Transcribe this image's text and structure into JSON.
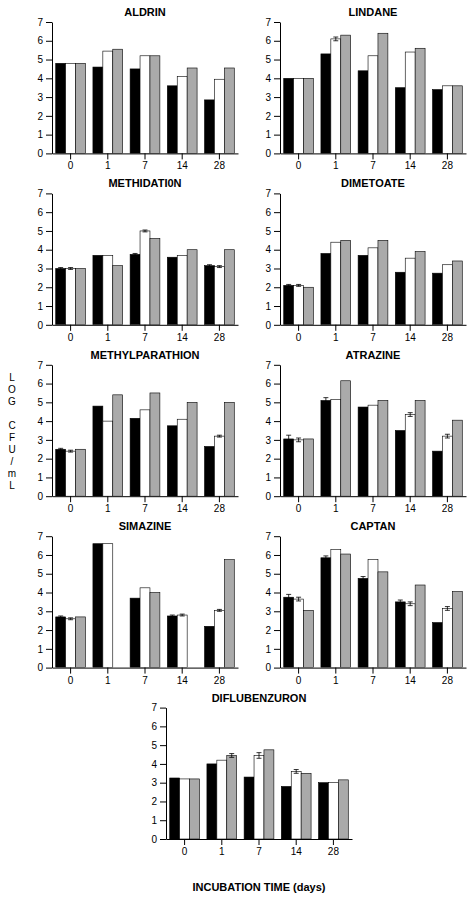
{
  "chart_data": [
    {
      "type": "bar",
      "title": "ALDRIN",
      "categories": [
        "0",
        "1",
        "7",
        "14",
        "28"
      ],
      "series": [
        {
          "color": "black",
          "values": [
            4.8,
            4.6,
            4.5,
            3.6,
            2.85
          ],
          "errors": [
            0,
            0,
            0,
            0,
            0
          ]
        },
        {
          "color": "white",
          "values": [
            4.8,
            5.45,
            5.2,
            4.1,
            3.95
          ],
          "errors": [
            0,
            0,
            0,
            0,
            0
          ]
        },
        {
          "color": "#aaaaaa",
          "values": [
            4.8,
            5.55,
            5.2,
            4.55,
            4.55
          ],
          "errors": [
            0,
            0,
            0,
            0,
            0
          ]
        }
      ],
      "ylim": [
        0,
        7
      ],
      "yticks": [
        0,
        1,
        2,
        3,
        4,
        5,
        6,
        7
      ],
      "grid": false
    },
    {
      "type": "bar",
      "title": "LINDANE",
      "categories": [
        "0",
        "1",
        "7",
        "14",
        "28"
      ],
      "series": [
        {
          "color": "black",
          "values": [
            4.0,
            5.3,
            4.4,
            3.5,
            3.4
          ],
          "errors": [
            0,
            0,
            0,
            0,
            0
          ]
        },
        {
          "color": "white",
          "values": [
            4.0,
            6.1,
            5.2,
            5.4,
            3.6
          ],
          "errors": [
            0,
            0.1,
            0,
            0,
            0
          ]
        },
        {
          "color": "#aaaaaa",
          "values": [
            4.0,
            6.3,
            6.4,
            5.6,
            3.6
          ],
          "errors": [
            0,
            0,
            0,
            0,
            0
          ]
        }
      ],
      "ylim": [
        0,
        7
      ],
      "yticks": [
        0,
        1,
        2,
        3,
        4,
        5,
        6,
        7
      ],
      "grid": false
    },
    {
      "type": "bar",
      "title": "METHIDATI0N",
      "categories": [
        "0",
        "1",
        "7",
        "14",
        "28"
      ],
      "series": [
        {
          "color": "black",
          "values": [
            3.0,
            3.7,
            3.75,
            3.6,
            3.15
          ],
          "errors": [
            0.05,
            0,
            0.05,
            0,
            0.05
          ]
        },
        {
          "color": "white",
          "values": [
            3.0,
            3.7,
            5.0,
            3.7,
            3.1
          ],
          "errors": [
            0.05,
            0,
            0.05,
            0,
            0.05
          ]
        },
        {
          "color": "#aaaaaa",
          "values": [
            3.0,
            3.15,
            4.6,
            4.0,
            4.0
          ],
          "errors": [
            0,
            0,
            0,
            0,
            0
          ]
        }
      ],
      "ylim": [
        0,
        7
      ],
      "yticks": [
        0,
        1,
        2,
        3,
        4,
        5,
        6,
        7
      ],
      "grid": false
    },
    {
      "type": "bar",
      "title": "DIMETOATE",
      "categories": [
        "0",
        "1",
        "7",
        "14",
        "28"
      ],
      "series": [
        {
          "color": "black",
          "values": [
            2.1,
            3.8,
            3.7,
            2.8,
            2.75
          ],
          "errors": [
            0.05,
            0,
            0,
            0,
            0
          ]
        },
        {
          "color": "white",
          "values": [
            2.1,
            4.4,
            4.1,
            3.55,
            3.2
          ],
          "errors": [
            0.05,
            0,
            0,
            0,
            0
          ]
        },
        {
          "color": "#aaaaaa",
          "values": [
            2.0,
            4.5,
            4.5,
            3.9,
            3.4
          ],
          "errors": [
            0,
            0,
            0,
            0,
            0
          ]
        }
      ],
      "ylim": [
        0,
        7
      ],
      "yticks": [
        0,
        1,
        2,
        3,
        4,
        5,
        6,
        7
      ],
      "grid": false
    },
    {
      "type": "bar",
      "title": "METHYLPARATHION",
      "categories": [
        "0",
        "1",
        "7",
        "14",
        "28"
      ],
      "series": [
        {
          "color": "black",
          "values": [
            2.5,
            4.8,
            4.15,
            3.75,
            2.65
          ],
          "errors": [
            0.05,
            0,
            0,
            0,
            0
          ]
        },
        {
          "color": "white",
          "values": [
            2.4,
            4.0,
            4.6,
            4.1,
            3.2
          ],
          "errors": [
            0.05,
            0,
            0,
            0,
            0.05
          ]
        },
        {
          "color": "#aaaaaa",
          "values": [
            2.5,
            5.4,
            5.5,
            5.0,
            5.0
          ],
          "errors": [
            0,
            0,
            0,
            0,
            0
          ]
        }
      ],
      "ylim": [
        0,
        7
      ],
      "yticks": [
        0,
        1,
        2,
        3,
        4,
        5,
        6,
        7
      ],
      "grid": false,
      "ylabel": "LOG CFU/mL"
    },
    {
      "type": "bar",
      "title": "ATRAZINE",
      "categories": [
        "0",
        "1",
        "7",
        "14",
        "28"
      ],
      "series": [
        {
          "color": "black",
          "values": [
            3.05,
            5.1,
            4.75,
            3.5,
            2.4
          ],
          "errors": [
            0.2,
            0.15,
            0,
            0,
            0
          ]
        },
        {
          "color": "white",
          "values": [
            3.0,
            5.15,
            4.85,
            4.35,
            3.2
          ],
          "errors": [
            0.1,
            0,
            0,
            0.1,
            0.1
          ]
        },
        {
          "color": "#aaaaaa",
          "values": [
            3.05,
            6.15,
            5.1,
            5.1,
            4.05
          ],
          "errors": [
            0,
            0,
            0,
            0,
            0
          ]
        }
      ],
      "ylim": [
        0,
        7
      ],
      "yticks": [
        0,
        1,
        2,
        3,
        4,
        5,
        6,
        7
      ],
      "grid": false
    },
    {
      "type": "bar",
      "title": "SIMAZINE",
      "categories": [
        "0",
        "1",
        "7",
        "14",
        "28"
      ],
      "series": [
        {
          "color": "black",
          "values": [
            2.7,
            6.6,
            3.7,
            2.75,
            2.2
          ],
          "errors": [
            0.05,
            0,
            0,
            0.05,
            0
          ]
        },
        {
          "color": "white",
          "values": [
            2.6,
            6.6,
            4.25,
            2.8,
            3.05
          ],
          "errors": [
            0.05,
            0,
            0,
            0.05,
            0.05
          ]
        },
        {
          "color": "#aaaaaa",
          "values": [
            2.7,
            0.0,
            4.0,
            0.0,
            5.75
          ],
          "errors": [
            0,
            0,
            0,
            0,
            0
          ]
        }
      ],
      "ylim": [
        0,
        7
      ],
      "yticks": [
        0,
        1,
        2,
        3,
        4,
        5,
        6,
        7
      ],
      "grid": false
    },
    {
      "type": "bar",
      "title": "CAPTAN",
      "categories": [
        "0",
        "1",
        "7",
        "14",
        "28"
      ],
      "series": [
        {
          "color": "black",
          "values": [
            3.75,
            5.85,
            4.75,
            3.5,
            2.4
          ],
          "errors": [
            0.15,
            0.1,
            0.1,
            0.1,
            0
          ]
        },
        {
          "color": "white",
          "values": [
            3.65,
            6.3,
            5.75,
            3.4,
            3.15
          ],
          "errors": [
            0.1,
            0,
            0,
            0.1,
            0.1
          ]
        },
        {
          "color": "#aaaaaa",
          "values": [
            3.05,
            6.05,
            5.1,
            4.4,
            4.05
          ],
          "errors": [
            0,
            0,
            0,
            0,
            0
          ]
        }
      ],
      "ylim": [
        0,
        7
      ],
      "yticks": [
        0,
        1,
        2,
        3,
        4,
        5,
        6,
        7
      ],
      "grid": false
    },
    {
      "type": "bar",
      "title": "DIFLUBENZURON",
      "categories": [
        "0",
        "1",
        "7",
        "14",
        "28"
      ],
      "series": [
        {
          "color": "black",
          "values": [
            3.25,
            4.0,
            3.3,
            2.8,
            3.0
          ],
          "errors": [
            0,
            0,
            0,
            0,
            0
          ]
        },
        {
          "color": "white",
          "values": [
            3.2,
            4.2,
            4.45,
            3.6,
            3.0
          ],
          "errors": [
            0,
            0,
            0.15,
            0.1,
            0
          ]
        },
        {
          "color": "#aaaaaa",
          "values": [
            3.2,
            4.45,
            4.75,
            3.5,
            3.15
          ],
          "errors": [
            0,
            0.1,
            0,
            0,
            0
          ]
        }
      ],
      "ylim": [
        0,
        7
      ],
      "yticks": [
        0,
        1,
        2,
        3,
        4,
        5,
        6,
        7
      ],
      "grid": false,
      "xlabel": "INCUBATION TIME (days)"
    }
  ]
}
